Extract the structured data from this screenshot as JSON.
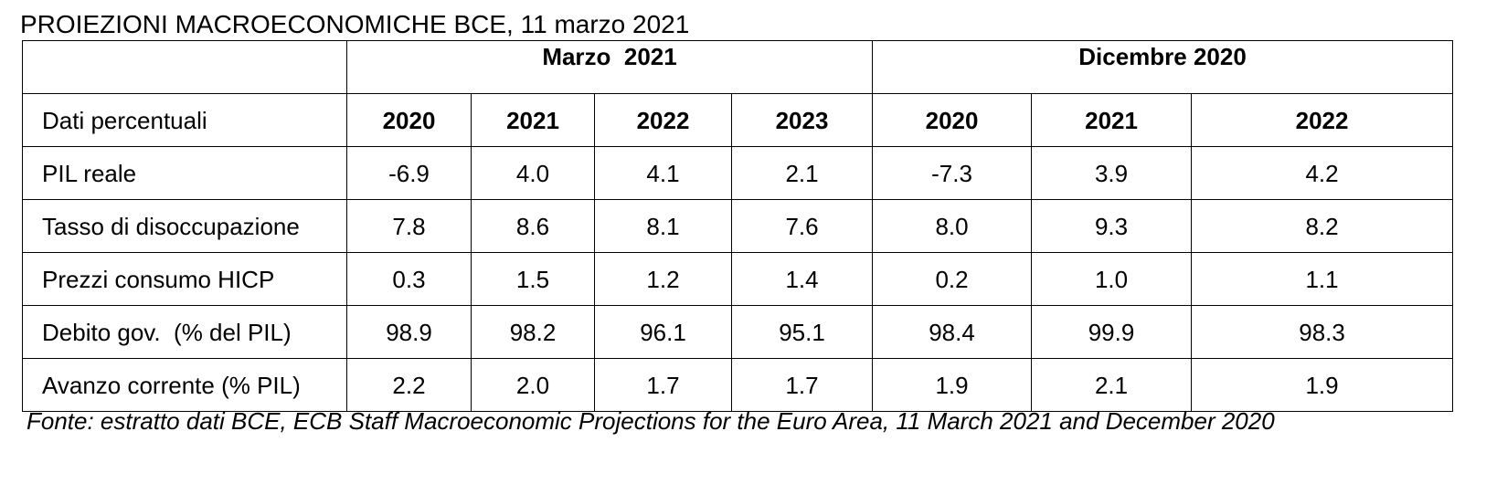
{
  "title": "PROIEZIONI MACROECONOMICHE BCE, 11 marzo 2021",
  "table": {
    "groups": [
      {
        "label": "Marzo  2021"
      },
      {
        "label": "Dicembre 2020"
      }
    ],
    "corner_label": "Dati percentuali",
    "years": [
      "2020",
      "2021",
      "2022",
      "2023",
      "2020",
      "2021",
      "2022"
    ],
    "rows": [
      {
        "label": "PIL reale",
        "values": [
          "-6.9",
          "4.0",
          "4.1",
          "2.1",
          "-7.3",
          "3.9",
          "4.2"
        ]
      },
      {
        "label": "Tasso di disoccupazione",
        "values": [
          "7.8",
          "8.6",
          "8.1",
          "7.6",
          "8.0",
          "9.3",
          "8.2"
        ]
      },
      {
        "label": "Prezzi consumo HICP",
        "values": [
          "0.3",
          "1.5",
          "1.2",
          "1.4",
          "0.2",
          "1.0",
          "1.1"
        ]
      },
      {
        "label": "Debito gov.  (% del PIL)",
        "values": [
          "98.9",
          "98.2",
          "96.1",
          "95.1",
          "98.4",
          "99.9",
          "98.3"
        ]
      },
      {
        "label": "Avanzo corrente (% PIL)",
        "values": [
          "2.2",
          "2.0",
          "1.7",
          "1.7",
          "1.9",
          "2.1",
          "1.9"
        ]
      }
    ]
  },
  "footnote": "Fonte: estratto dati BCE, ECB Staff Macroeconomic Projections for the Euro Area, 11 March 2021 and December 2020"
}
